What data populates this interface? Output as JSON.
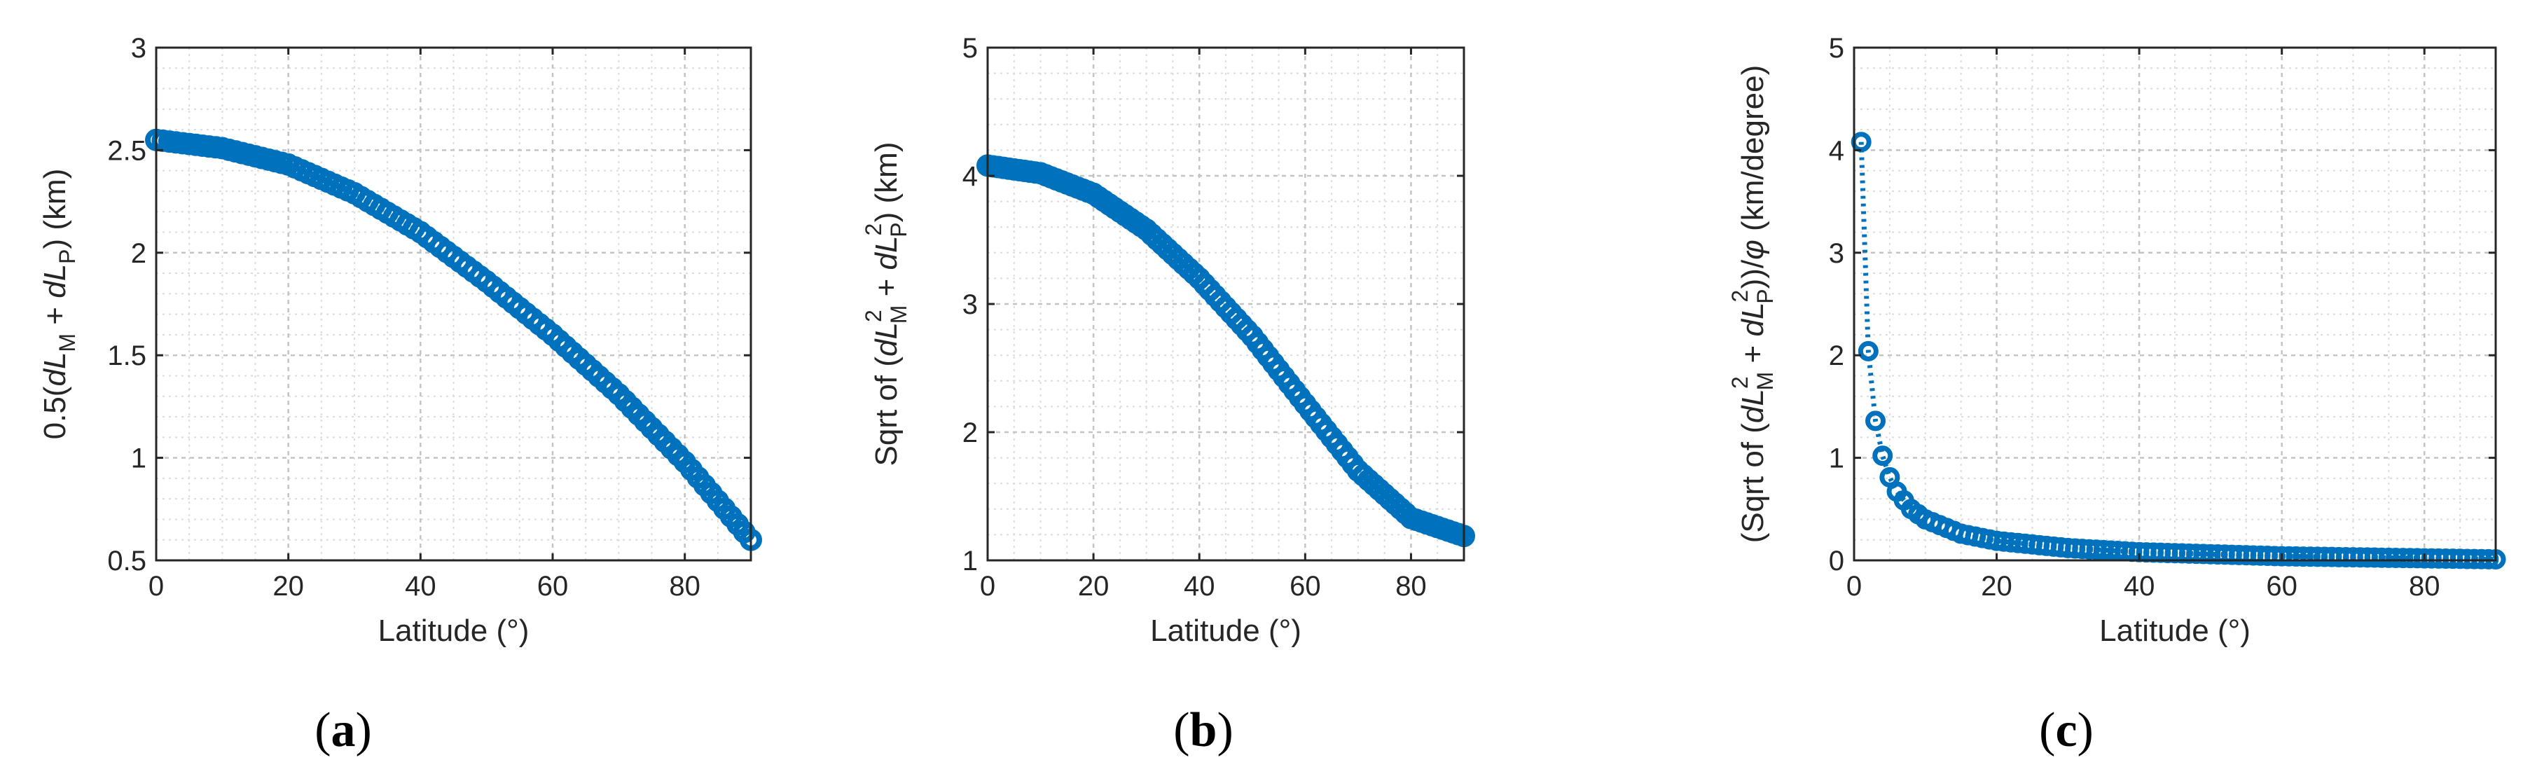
{
  "chart_data": [
    {
      "type": "scatter",
      "panel": "a",
      "caption": {
        "open": "(",
        "letter": "a",
        "close": ")"
      },
      "title": "",
      "xlabel": "Latitude (°)",
      "ylabel": {
        "pre": "0.5(",
        "v1": "dL",
        "v1sub": "M",
        "mid": " + ",
        "v2": "dL",
        "v2sub": "P",
        "post": ") (km)"
      },
      "xlim": [
        0,
        90
      ],
      "ylim": [
        0.5,
        3
      ],
      "xticks": [
        0,
        20,
        40,
        60,
        80
      ],
      "xtick_labels": [
        "0",
        "20",
        "40",
        "60",
        "80"
      ],
      "yticks": [
        0.5,
        1,
        1.5,
        2,
        2.5,
        3
      ],
      "ytick_labels": [
        "0.5",
        "1",
        "1.5",
        "2",
        "2.5",
        "3"
      ],
      "grid": true,
      "marker": "circle",
      "line": "none",
      "color": "#0072BD",
      "x": [
        0,
        10,
        20,
        30,
        40,
        50,
        60,
        70,
        80,
        90
      ],
      "y": [
        2.55,
        2.51,
        2.43,
        2.29,
        2.1,
        1.86,
        1.6,
        1.31,
        0.98,
        0.6
      ]
    },
    {
      "type": "scatter",
      "panel": "b",
      "caption": {
        "open": "(",
        "letter": "b",
        "close": ")"
      },
      "title": "",
      "xlabel": "Latitude (°)",
      "ylabel": {
        "pre": "Sqrt of (",
        "v1": "dL",
        "v1sup": "2",
        "v1sub": "M",
        "mid": " + ",
        "v2": "dL",
        "v2sup": "2",
        "v2sub": "P",
        "post": ") (km)"
      },
      "xlim": [
        0,
        90
      ],
      "ylim": [
        1,
        5
      ],
      "xticks": [
        0,
        20,
        40,
        60,
        80
      ],
      "xtick_labels": [
        "0",
        "20",
        "40",
        "60",
        "80"
      ],
      "yticks": [
        1,
        2,
        3,
        4,
        5
      ],
      "ytick_labels": [
        "1",
        "2",
        "3",
        "4",
        "5"
      ],
      "grid": true,
      "marker": "circle",
      "line": "none",
      "color": "#0072BD",
      "x": [
        0,
        10,
        20,
        30,
        40,
        50,
        60,
        70,
        80,
        90
      ],
      "y": [
        4.08,
        4.02,
        3.86,
        3.58,
        3.2,
        2.75,
        2.22,
        1.7,
        1.33,
        1.19
      ]
    },
    {
      "type": "scatter",
      "panel": "c",
      "caption": {
        "open": "(",
        "letter": "c",
        "close": ")"
      },
      "title": "",
      "xlabel": "Latitude (°)",
      "ylabel": {
        "pre": "(Sqrt of (",
        "v1": "dL",
        "v1sup": "2",
        "v1sub": "M",
        "mid": " + ",
        "v2": "dL",
        "v2sup": "2",
        "v2sub": "P",
        "post": "))/",
        "phi": "φ",
        "post2": " (km/degree)"
      },
      "xlim": [
        0,
        90
      ],
      "ylim": [
        0,
        5
      ],
      "xticks": [
        0,
        20,
        40,
        60,
        80
      ],
      "xtick_labels": [
        "0",
        "20",
        "40",
        "60",
        "80"
      ],
      "yticks": [
        0,
        1,
        2,
        3,
        4,
        5
      ],
      "ytick_labels": [
        "0",
        "1",
        "2",
        "3",
        "4",
        "5"
      ],
      "grid": true,
      "marker": "circle",
      "line": "dotted",
      "color": "#0072BD",
      "x": [
        1,
        2,
        3,
        4,
        5,
        6,
        8,
        10,
        15,
        20,
        30,
        40,
        50,
        60,
        70,
        80,
        90
      ],
      "y": [
        4.08,
        2.04,
        1.36,
        1.02,
        0.81,
        0.67,
        0.5,
        0.4,
        0.26,
        0.19,
        0.12,
        0.08,
        0.06,
        0.04,
        0.03,
        0.02,
        0.01
      ]
    }
  ]
}
